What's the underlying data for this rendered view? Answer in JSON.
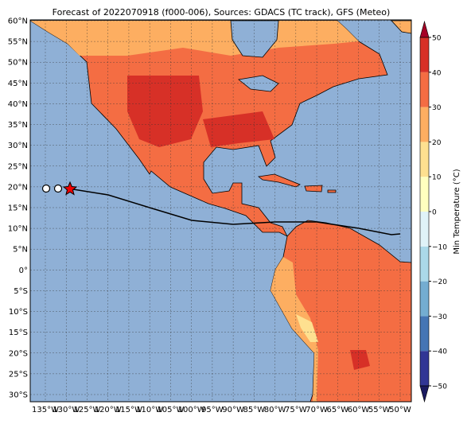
{
  "map": {
    "title": "Forecast of 2022070918 (f000-006), Sources: GDACS (TC track), GFS (Meteo)",
    "lat_labels": [
      {
        "value": 60,
        "label": "60°N"
      },
      {
        "value": 55,
        "label": "55°N"
      },
      {
        "value": 50,
        "label": "50°N"
      },
      {
        "value": 45,
        "label": "45°N"
      },
      {
        "value": 40,
        "label": "40°N"
      },
      {
        "value": 35,
        "label": "35°N"
      },
      {
        "value": 30,
        "label": "30°N"
      },
      {
        "value": 25,
        "label": "25°N"
      },
      {
        "value": 20,
        "label": "20°N"
      },
      {
        "value": 15,
        "label": "15°N"
      },
      {
        "value": 10,
        "label": "10°N"
      },
      {
        "value": 5,
        "label": "5°N"
      },
      {
        "value": 0,
        "label": "0°"
      },
      {
        "value": -5,
        "label": "5°S"
      },
      {
        "value": -10,
        "label": "10°S"
      },
      {
        "value": -15,
        "label": "15°S"
      },
      {
        "value": -20,
        "label": "20°S"
      },
      {
        "value": -25,
        "label": "25°S"
      },
      {
        "value": -30,
        "label": "30°S"
      }
    ],
    "lon_labels": [
      {
        "value": -135,
        "label": "135°W"
      },
      {
        "value": -130,
        "label": "130°W"
      },
      {
        "value": -125,
        "label": "125°W"
      },
      {
        "value": -120,
        "label": "120°W"
      },
      {
        "value": -115,
        "label": "115°W"
      },
      {
        "value": -110,
        "label": "110°W"
      },
      {
        "value": -105,
        "label": "105°W"
      },
      {
        "value": -100,
        "label": "100°W"
      },
      {
        "value": -95,
        "label": "95°W"
      },
      {
        "value": -90,
        "label": "90°W"
      },
      {
        "value": -85,
        "label": "85°W"
      },
      {
        "value": -80,
        "label": "80°W"
      },
      {
        "value": -75,
        "label": "75°W"
      },
      {
        "value": -70,
        "label": "70°W"
      },
      {
        "value": -65,
        "label": "65°W"
      },
      {
        "value": -60,
        "label": "60°W"
      },
      {
        "value": -55,
        "label": "55°W"
      },
      {
        "value": -50,
        "label": "50°W"
      }
    ],
    "colorbar": {
      "label": "Min Temperature (°C)",
      "lim": [
        -50,
        50
      ],
      "ticks": [
        {
          "value": 50,
          "label": "50"
        },
        {
          "value": 40,
          "label": "40"
        },
        {
          "value": 30,
          "label": "30"
        },
        {
          "value": 20,
          "label": "20"
        },
        {
          "value": 10,
          "label": "10"
        },
        {
          "value": 0,
          "label": "0"
        },
        {
          "value": -10,
          "label": "−10"
        },
        {
          "value": -20,
          "label": "−20"
        },
        {
          "value": -30,
          "label": "−30"
        },
        {
          "value": -40,
          "label": "−40"
        },
        {
          "value": -50,
          "label": "−50"
        }
      ],
      "colors": [
        "#313695",
        "#4575b4",
        "#74add1",
        "#abd9e9",
        "#e0f3f8",
        "#ffffbf",
        "#fee090",
        "#fdae61",
        "#f46d43",
        "#d73027"
      ],
      "under_color": "#1a1a60",
      "over_color": "#a50026"
    }
  }
}
